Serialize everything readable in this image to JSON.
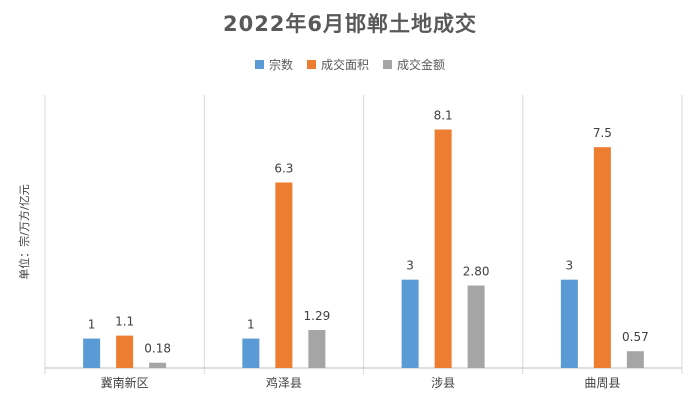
{
  "chart_data": {
    "type": "bar",
    "title": "2022年6月邯郸土地成交",
    "ylabel": "单位：宗/万方/亿元",
    "xlabel": "",
    "categories": [
      "冀南新区",
      "鸡泽县",
      "涉县",
      "曲周县"
    ],
    "series": [
      {
        "name": "宗数",
        "color": "#5b9bd5",
        "values": [
          1,
          1,
          3,
          3
        ],
        "labels": [
          "1",
          "1",
          "3",
          "3"
        ]
      },
      {
        "name": "成交面积",
        "color": "#ed7d31",
        "values": [
          1.1,
          6.3,
          8.1,
          7.5
        ],
        "labels": [
          "1.1",
          "6.3",
          "8.1",
          "7.5"
        ]
      },
      {
        "name": "成交金额",
        "color": "#a5a5a5",
        "values": [
          0.18,
          1.29,
          2.8,
          0.57
        ],
        "labels": [
          "0.18",
          "1.29",
          "2.80",
          "0.57"
        ]
      }
    ],
    "ylim": [
      0,
      9
    ],
    "grid": false,
    "legend_position": "top"
  }
}
